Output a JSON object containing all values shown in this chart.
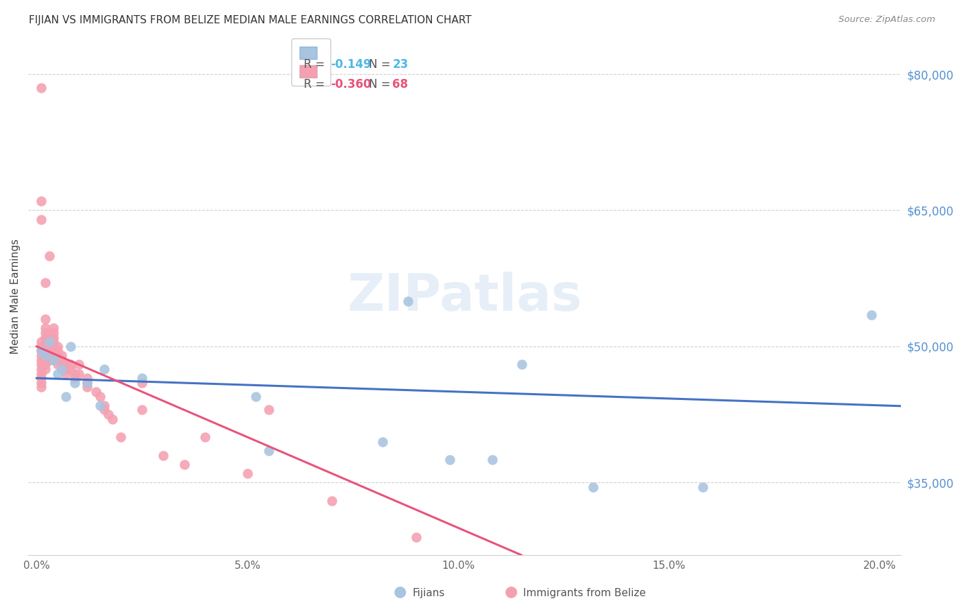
{
  "title": "FIJIAN VS IMMIGRANTS FROM BELIZE MEDIAN MALE EARNINGS CORRELATION CHART",
  "source": "Source: ZipAtlas.com",
  "xlabel_ticks": [
    "0.0%",
    "5.0%",
    "10.0%",
    "15.0%",
    "20.0%"
  ],
  "xlabel_tick_vals": [
    0.0,
    0.05,
    0.1,
    0.15,
    0.2
  ],
  "ylabel": "Median Male Earnings",
  "ylabel_right_labels": [
    "$80,000",
    "$65,000",
    "$50,000",
    "$35,000"
  ],
  "ylabel_right_vals": [
    80000,
    65000,
    50000,
    35000
  ],
  "xlim": [
    -0.002,
    0.205
  ],
  "ylim": [
    27000,
    84000
  ],
  "fijian_R": -0.149,
  "fijian_N": 23,
  "belize_R": -0.36,
  "belize_N": 68,
  "watermark": "ZIPatlas",
  "fijian_color": "#a8c4e0",
  "belize_color": "#f4a0b0",
  "fijian_line_color": "#4472c4",
  "belize_line_color": "#e8537a",
  "fijian_x": [
    0.001,
    0.002,
    0.003,
    0.004,
    0.005,
    0.006,
    0.007,
    0.008,
    0.009,
    0.012,
    0.015,
    0.016,
    0.025,
    0.052,
    0.055,
    0.082,
    0.088,
    0.098,
    0.108,
    0.132,
    0.158,
    0.198,
    0.115
  ],
  "fijian_y": [
    49500,
    49000,
    50500,
    48500,
    47000,
    47500,
    44500,
    50000,
    46000,
    46000,
    43500,
    47500,
    46500,
    44500,
    38500,
    39500,
    55000,
    37500,
    37500,
    34500,
    34500,
    53500,
    48000
  ],
  "belize_x": [
    0.001,
    0.001,
    0.001,
    0.001,
    0.001,
    0.001,
    0.001,
    0.001,
    0.001,
    0.001,
    0.001,
    0.002,
    0.002,
    0.002,
    0.002,
    0.002,
    0.002,
    0.002,
    0.002,
    0.002,
    0.002,
    0.003,
    0.003,
    0.003,
    0.003,
    0.003,
    0.003,
    0.004,
    0.004,
    0.004,
    0.004,
    0.004,
    0.004,
    0.005,
    0.005,
    0.005,
    0.005,
    0.005,
    0.006,
    0.006,
    0.007,
    0.007,
    0.007,
    0.008,
    0.008,
    0.009,
    0.009,
    0.01,
    0.01,
    0.012,
    0.012,
    0.012,
    0.014,
    0.015,
    0.016,
    0.016,
    0.017,
    0.018,
    0.02,
    0.025,
    0.025,
    0.03,
    0.035,
    0.04,
    0.05,
    0.055,
    0.07,
    0.09
  ],
  "belize_y": [
    50500,
    50000,
    49500,
    49000,
    48500,
    48000,
    47500,
    47000,
    46500,
    46000,
    45500,
    52000,
    51500,
    51000,
    50500,
    50000,
    49500,
    49000,
    48500,
    48000,
    47500,
    51000,
    50500,
    50000,
    49500,
    49000,
    48500,
    52000,
    51500,
    51000,
    50500,
    50000,
    49500,
    50000,
    49500,
    49000,
    48500,
    48000,
    49000,
    48500,
    48000,
    47500,
    47000,
    48000,
    47500,
    47000,
    46500,
    48000,
    47000,
    46500,
    46000,
    45500,
    45000,
    44500,
    43500,
    43000,
    42500,
    42000,
    40000,
    46000,
    43000,
    38000,
    37000,
    40000,
    36000,
    43000,
    33000,
    29000
  ],
  "belize_outliers_x": [
    0.001,
    0.001,
    0.001,
    0.002,
    0.002,
    0.003
  ],
  "belize_outliers_y": [
    78500,
    66000,
    64000,
    57000,
    53000,
    60000
  ]
}
